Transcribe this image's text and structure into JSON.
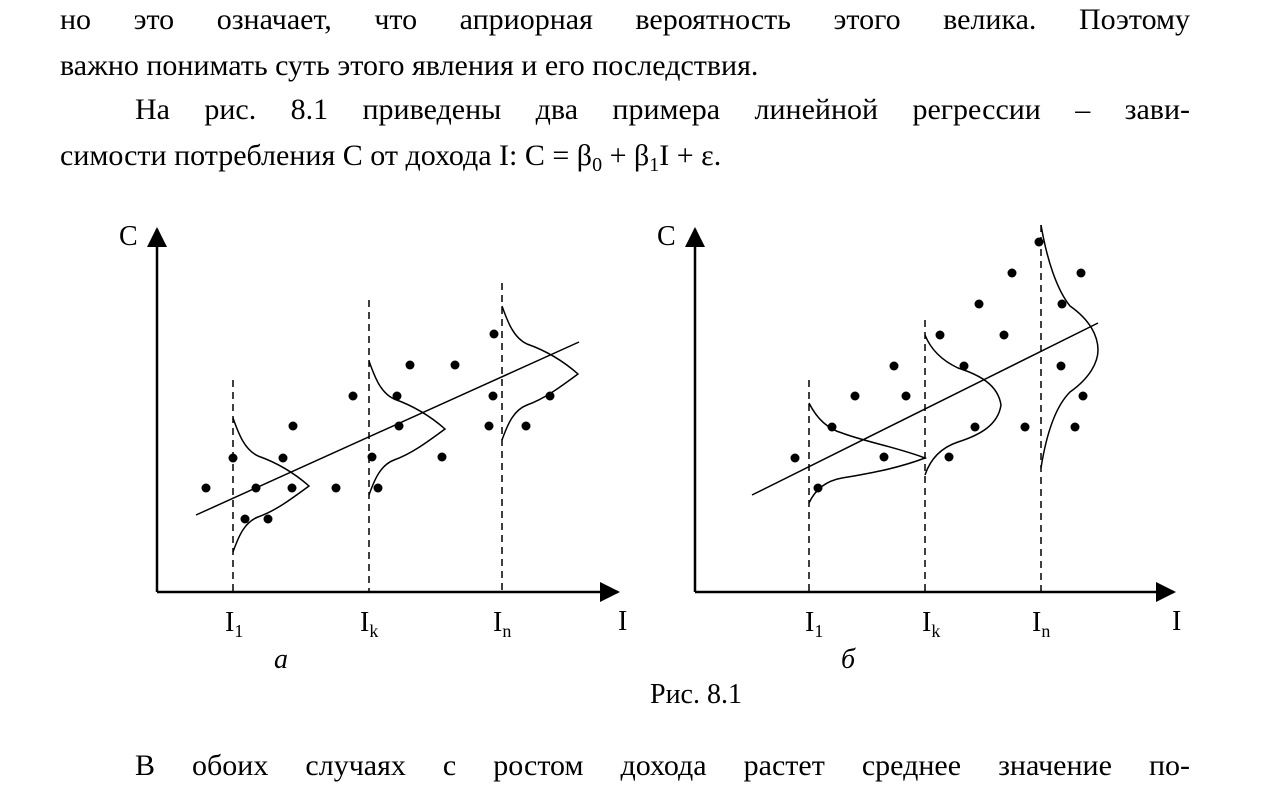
{
  "text": {
    "line1": "но это означает, что априорная вероятность этого велика. Поэтому",
    "line2": "важно понимать суть этого явления и его последствия.",
    "line3": "На рис. 8.1 приведены два примера линейной регрессии – зави-",
    "line4_prefix": "симости потребления C от дохода I: C = β",
    "line4_sub0": "0",
    "line4_mid": " + β",
    "line4_sub1": "1",
    "line4_suffix": "I + ε.",
    "line5": "В обоих случаях с ростом дохода растет среднее значение по-"
  },
  "figure": {
    "caption": "Рис. 8.1",
    "panels": [
      {
        "label": "а",
        "y_axis_label": "C",
        "x_axis_label": "I",
        "ticks": [
          {
            "base": "I",
            "sub": "1"
          },
          {
            "base": "I",
            "sub": "k"
          },
          {
            "base": "I",
            "sub": "n"
          }
        ]
      },
      {
        "label": "б",
        "y_axis_label": "C",
        "x_axis_label": "I",
        "ticks": [
          {
            "base": "I",
            "sub": "1"
          },
          {
            "base": "I",
            "sub": "k"
          },
          {
            "base": "I",
            "sub": "n"
          }
        ]
      }
    ]
  }
}
